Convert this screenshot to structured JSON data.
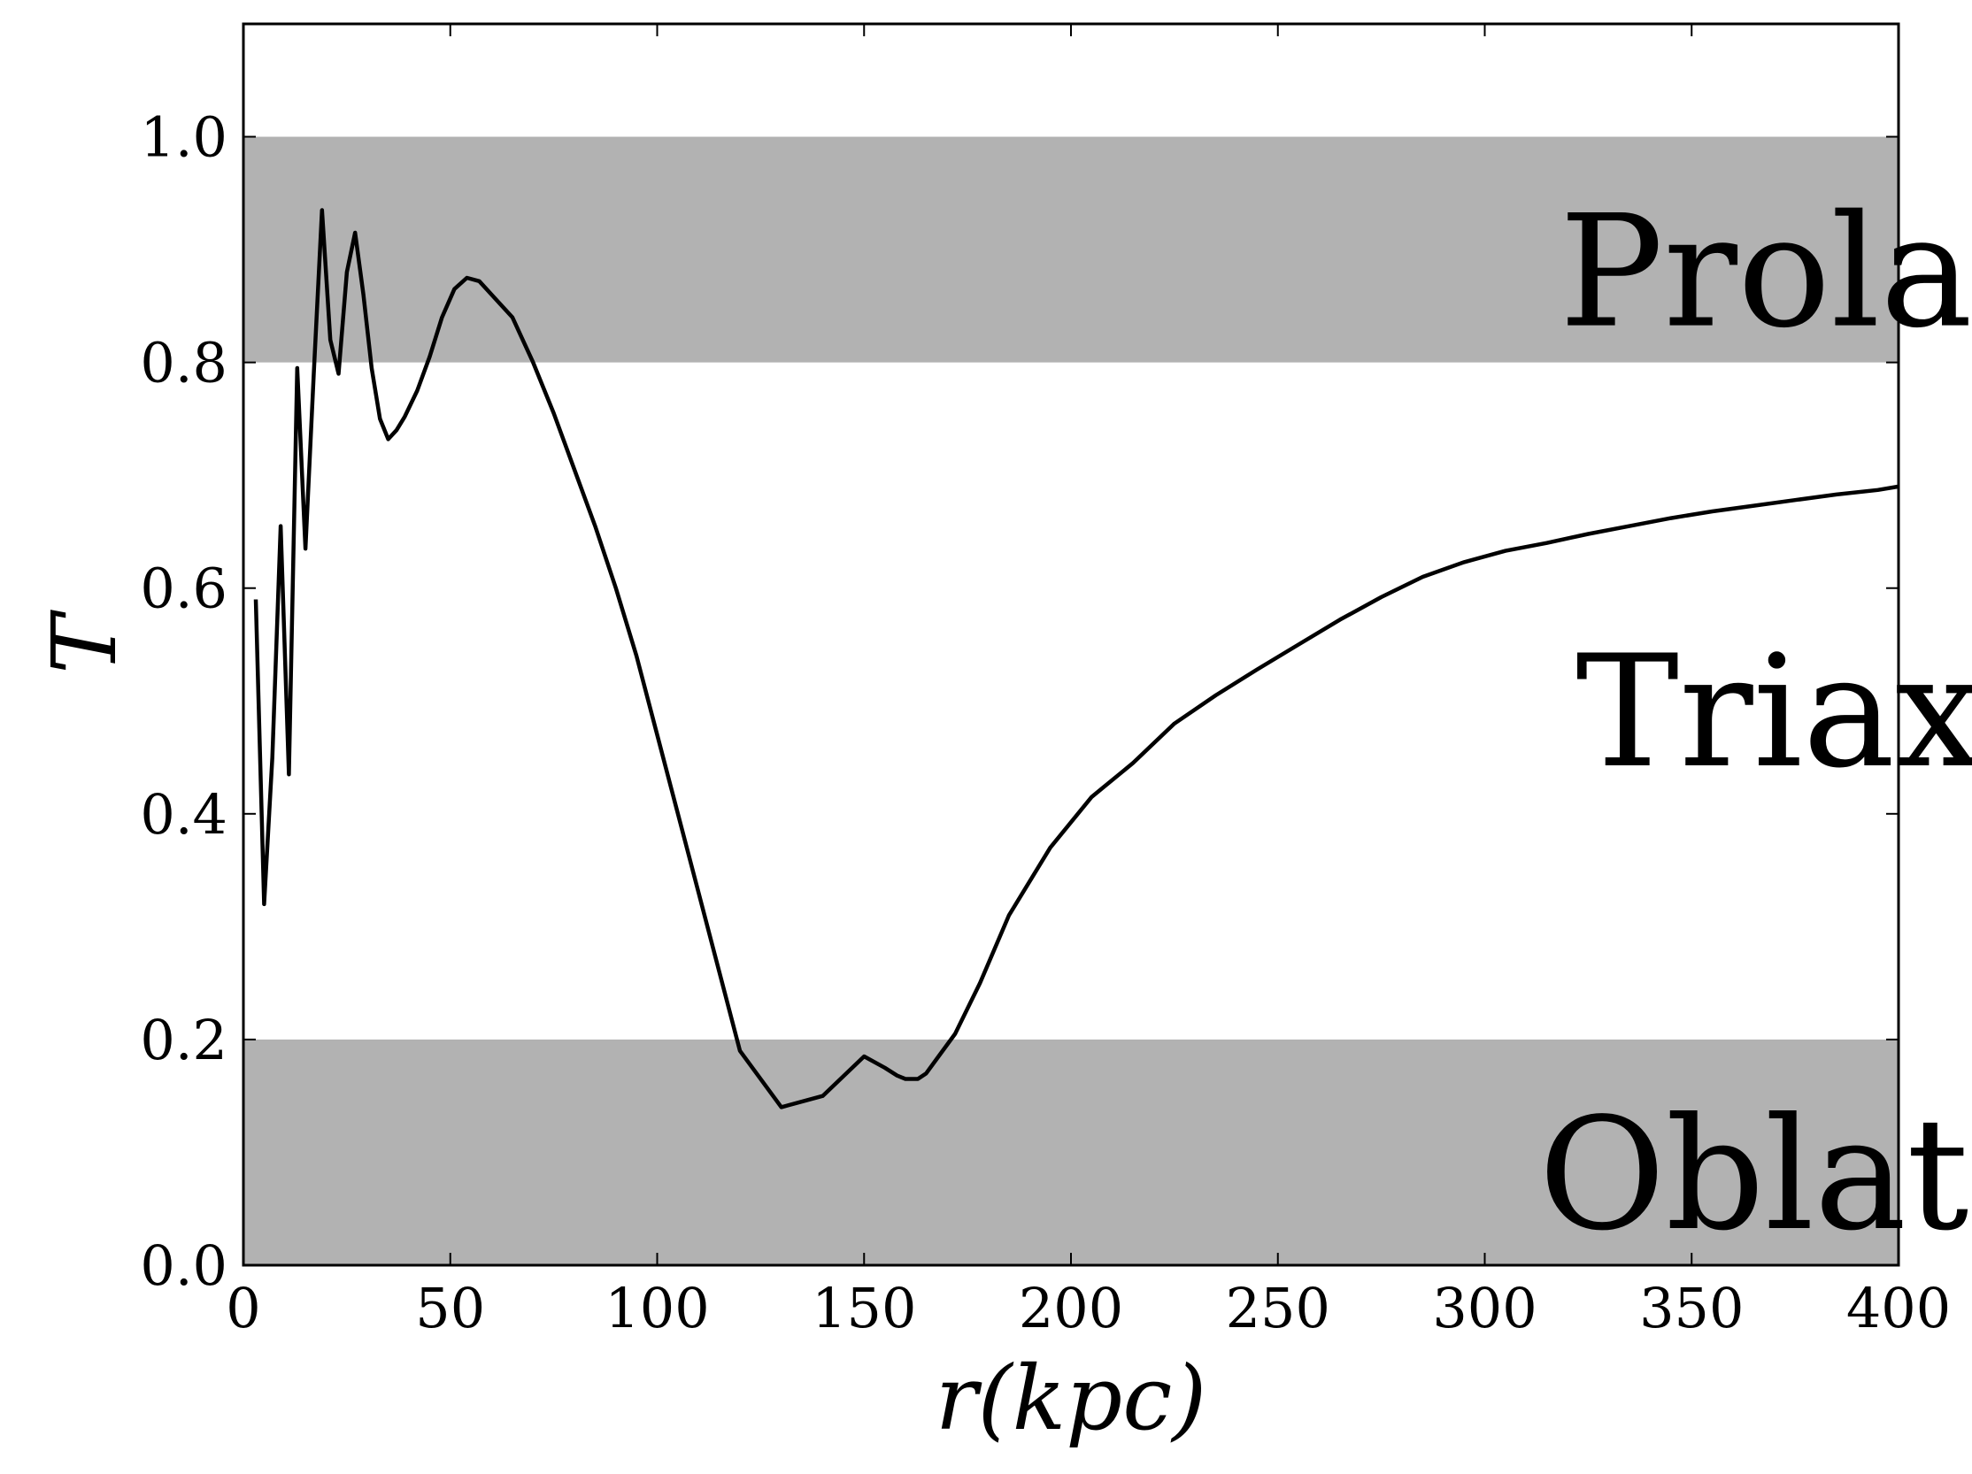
{
  "chart_data": {
    "type": "line",
    "title": "",
    "xlabel": "r(kpc)",
    "ylabel": "T",
    "xlim": [
      0,
      400
    ],
    "ylim": [
      0,
      1.1
    ],
    "xticks": [
      0,
      50,
      100,
      150,
      200,
      250,
      300,
      350,
      400
    ],
    "xtick_labels": [
      "0",
      "50",
      "100",
      "150",
      "200",
      "250",
      "300",
      "350",
      "400"
    ],
    "yticks": [
      0.0,
      0.2,
      0.4,
      0.6,
      0.8,
      1.0
    ],
    "ytick_labels": [
      "0.0",
      "0.2",
      "0.4",
      "0.6",
      "0.8",
      "1.0"
    ],
    "grid": false,
    "bands": [
      {
        "y0": 0.8,
        "y1": 1.0,
        "color": "#b2b2b2"
      },
      {
        "y0": 0.0,
        "y1": 0.2,
        "color": "#b2b2b2"
      }
    ],
    "annotations": [
      {
        "text": "Prolate",
        "x": 318,
        "y": 0.88
      },
      {
        "text": "Triaxial",
        "x": 322,
        "y": 0.49
      },
      {
        "text": "Oblate",
        "x": 313,
        "y": 0.08
      }
    ],
    "series": [
      {
        "color": "#000000",
        "x": [
          3,
          5,
          7,
          9,
          11,
          13,
          15,
          17,
          19,
          21,
          23,
          25,
          27,
          29,
          31,
          33,
          35,
          37,
          39,
          42,
          45,
          48,
          51,
          54,
          57,
          60,
          65,
          70,
          75,
          80,
          85,
          90,
          95,
          100,
          110,
          120,
          130,
          140,
          150,
          155,
          158,
          160,
          163,
          165,
          168,
          172,
          178,
          185,
          195,
          205,
          215,
          225,
          235,
          245,
          255,
          265,
          275,
          285,
          295,
          305,
          315,
          325,
          335,
          345,
          355,
          365,
          375,
          385,
          395,
          400
        ],
        "y": [
          0.59,
          0.32,
          0.45,
          0.655,
          0.435,
          0.795,
          0.635,
          0.79,
          0.935,
          0.82,
          0.79,
          0.88,
          0.915,
          0.86,
          0.795,
          0.75,
          0.732,
          0.74,
          0.752,
          0.775,
          0.805,
          0.84,
          0.865,
          0.875,
          0.872,
          0.86,
          0.84,
          0.8,
          0.755,
          0.705,
          0.655,
          0.6,
          0.54,
          0.47,
          0.33,
          0.19,
          0.14,
          0.15,
          0.185,
          0.175,
          0.168,
          0.165,
          0.165,
          0.17,
          0.185,
          0.205,
          0.25,
          0.31,
          0.37,
          0.415,
          0.445,
          0.48,
          0.505,
          0.528,
          0.55,
          0.572,
          0.592,
          0.61,
          0.623,
          0.633,
          0.64,
          0.648,
          0.655,
          0.662,
          0.668,
          0.673,
          0.678,
          0.683,
          0.687,
          0.69
        ]
      }
    ]
  }
}
